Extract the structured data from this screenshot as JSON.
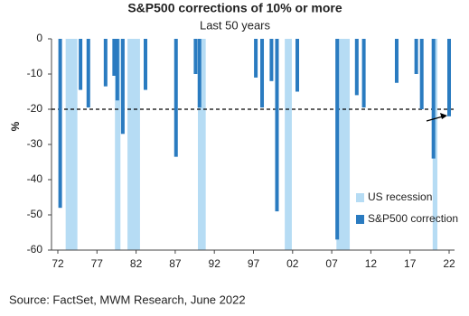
{
  "chart_data": {
    "type": "bar",
    "title": "S&P500 corrections of 10% or more",
    "subtitle": "Last 50 years",
    "ylabel": "%",
    "xlim": [
      1972,
      2022
    ],
    "xticks": [
      {
        "value": 1972,
        "label": "72"
      },
      {
        "value": 1977,
        "label": "77"
      },
      {
        "value": 1982,
        "label": "82"
      },
      {
        "value": 1987,
        "label": "87"
      },
      {
        "value": 1992,
        "label": "92"
      },
      {
        "value": 1997,
        "label": "97"
      },
      {
        "value": 2002,
        "label": "02"
      },
      {
        "value": 2007,
        "label": "07"
      },
      {
        "value": 2012,
        "label": "12"
      },
      {
        "value": 2017,
        "label": "17"
      },
      {
        "value": 2022,
        "label": "22"
      }
    ],
    "ylim": [
      -60,
      0
    ],
    "yticks": [
      0,
      -10,
      -20,
      -30,
      -40,
      -50,
      -60
    ],
    "reference_line": -20,
    "series": [
      {
        "name": "S&P500 correction",
        "color": "#2a7bc0",
        "x": [
          1972.3,
          1974.9,
          1975.9,
          1978.1,
          1979.2,
          1979.6,
          1980.3,
          1983.2,
          1987.1,
          1989.6,
          1990.1,
          1997.3,
          1998.1,
          1999.3,
          2000.0,
          2002.6,
          2007.7,
          2010.2,
          2011.1,
          2015.3,
          2017.8,
          2018.5,
          2020.0,
          2022.0
        ],
        "values": [
          -48,
          -14.5,
          -19.5,
          -13.5,
          -10.5,
          -17.5,
          -27,
          -14.5,
          -33.5,
          -10,
          -19.5,
          -11,
          -19.5,
          -12,
          -49,
          -15,
          -57,
          -16,
          -19.5,
          -12.5,
          -10,
          -20,
          -34,
          -22
        ]
      }
    ],
    "recessions": {
      "name": "US recession",
      "color": "#b6dcf4",
      "spans": [
        [
          1973.0,
          1974.5
        ],
        [
          1979.3,
          1980.0
        ],
        [
          1980.9,
          1982.5
        ],
        [
          1989.9,
          1990.9
        ],
        [
          2001.0,
          2001.9
        ],
        [
          2007.6,
          2009.3
        ],
        [
          2019.9,
          2020.5
        ]
      ]
    },
    "legend": "lower right"
  },
  "source": "Source: FactSet, MWM Research, June 2022"
}
